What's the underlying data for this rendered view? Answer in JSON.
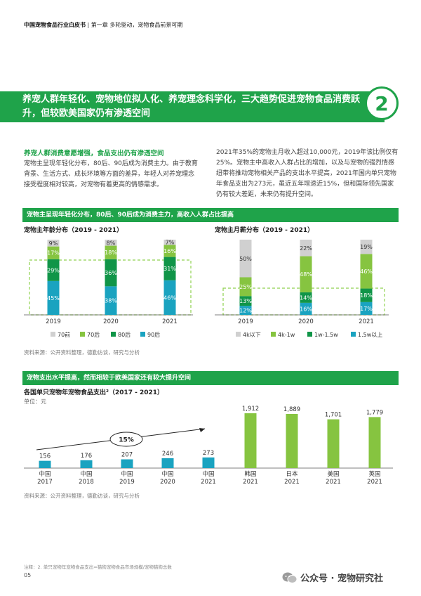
{
  "header": {
    "doc": "中国宠物食品行业白皮书",
    "chapter": "第一章 多轮驱动，宠物食品前景可期"
  },
  "banner": {
    "text": "养宠人群年轻化、宠物地位拟人化、养宠理念科学化，三大趋势促进宠物食品消费跃升，但较欧美国家仍有渗透空间",
    "number": "2"
  },
  "intro": {
    "subtitle": "养宠人群消费意愿增强，食品支出仍有渗透空间",
    "left": "宠物主呈现年轻化分布，80后、90后成为消费主力。由于教育背景、生活方式、成长环境等方面的差异，年轻人对养宠理念接受程度相对较高，对宠物有着更高的情感需求。",
    "right": "2021年35%的宠物主月收入超过10,000元，2019年该比例仅有25%。宠物主中高收入人群占比的增加，以及与宠物的强烈情感纽带将推动宠物相关产品的支出水平提高，2021年国内单只宠物年食品支出为273元，虽近五年增速近15%，但和国际领先国家仍有较大差距，未来仍有提升空间。"
  },
  "section1": {
    "bar": "宠物主呈现年轻化分布，80后、90后成为消费主力，高收入人群占比提高",
    "source": "资料来源：公开资料整理，德勤访谈，研究与分析"
  },
  "section2": {
    "bar": "宠物支出水平提高，然而相较于欧美国家还有较大提升空间",
    "source": "资料来源：公开资料整理，德勤访谈，研究与分析"
  },
  "chart_data": [
    {
      "type": "bar",
      "stacked": true,
      "title": "宠物主年龄分布（2019 - 2021）",
      "categories": [
        "2019",
        "2020",
        "2021"
      ],
      "series": [
        {
          "name": "90后",
          "values": [
            45,
            38,
            46
          ],
          "color": "#1aa3c0"
        },
        {
          "name": "80后",
          "values": [
            29,
            36,
            31
          ],
          "color": "#109548"
        },
        {
          "name": "70后",
          "values": [
            17,
            18,
            16
          ],
          "color": "#86c440"
        },
        {
          "name": "70前",
          "values": [
            9,
            8,
            7
          ],
          "color": "#d0d0d0"
        }
      ],
      "labels": [
        [
          "45%",
          "29%",
          "17%",
          "9%"
        ],
        [
          "38%",
          "36%",
          "18%",
          "8%"
        ],
        [
          "46%",
          "31%",
          "16%",
          "7%"
        ]
      ]
    },
    {
      "type": "bar",
      "stacked": true,
      "title": "宠物主月薪分布（2019 - 2021）",
      "categories": [
        "2019",
        "2020",
        "2021"
      ],
      "series": [
        {
          "name": "1.5w以上",
          "values": [
            12,
            16,
            17
          ],
          "color": "#1aa3c0"
        },
        {
          "name": "1w-1.5w",
          "values": [
            13,
            14,
            18
          ],
          "color": "#109548"
        },
        {
          "name": "4k-1w",
          "values": [
            25,
            48,
            46
          ],
          "color": "#86c440"
        },
        {
          "name": "4k以下",
          "values": [
            50,
            22,
            19
          ],
          "color": "#d0d0d0"
        }
      ],
      "labels": [
        [
          "12%",
          "13%",
          "25%",
          "50%"
        ],
        [
          "16%",
          "14%",
          "48%",
          "22%"
        ],
        [
          "17%",
          "18%",
          "46%",
          "19%"
        ]
      ]
    },
    {
      "type": "bar",
      "title": "各国单只宠物年宠物食品支出²（2017 - 2021）",
      "ylabel": "单位：元",
      "categories": [
        [
          "中国",
          "2017"
        ],
        [
          "中国",
          "2018"
        ],
        [
          "中国",
          "2019"
        ],
        [
          "中国",
          "2020"
        ],
        [
          "中国",
          "2021"
        ],
        [
          "韩国",
          "2021"
        ],
        [
          "日本",
          "2021"
        ],
        [
          "美国",
          "2021"
        ],
        [
          "英国",
          "2021"
        ]
      ],
      "values": [
        156,
        176,
        207,
        246,
        273,
        1912,
        1889,
        1701,
        1779
      ],
      "value_labels": [
        "156",
        "176",
        "207",
        "246",
        "273",
        "1,912",
        "1,889",
        "1,701",
        "1,779"
      ],
      "colors": [
        "#1aa3c0",
        "#1aa3c0",
        "#1aa3c0",
        "#1aa3c0",
        "#1aa3c0",
        "#86c440",
        "#86c440",
        "#86c440",
        "#86c440"
      ],
      "annotation": "15%"
    }
  ],
  "legend1": [
    "70前",
    "70后",
    "80后",
    "90后"
  ],
  "legend2": [
    "4k以下",
    "4k-1w",
    "1w-1.5w",
    "1.5w以上"
  ],
  "footnote": "注释：2. 单只宠物年宠物食品支出=猫狗宠物食品市场规模/宠物猫狗总数",
  "page": "05",
  "watermark": "公众号 · 宠物研究社"
}
